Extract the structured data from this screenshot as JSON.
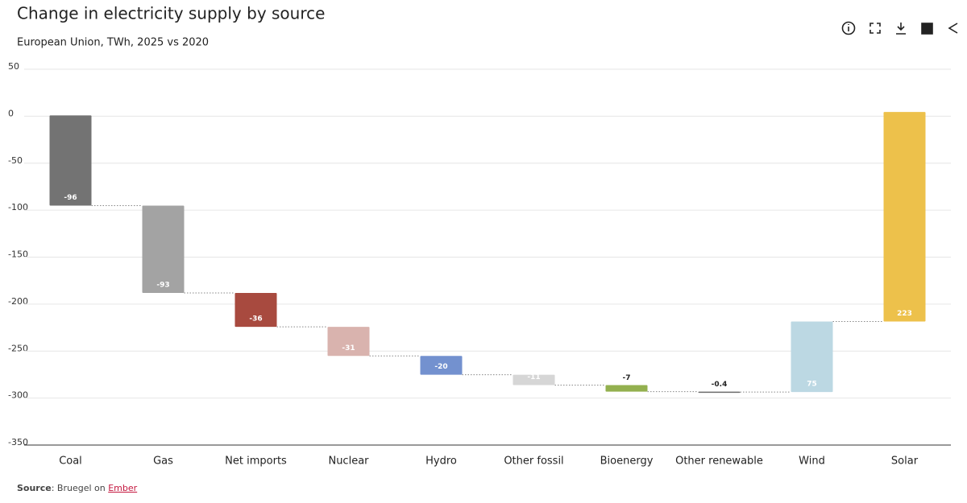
{
  "chart_data": {
    "type": "waterfall",
    "title": "Change in electricity supply by source",
    "subtitle": "European Union, TWh, 2025 vs 2020",
    "categories": [
      "Coal",
      "Gas",
      "Net imports",
      "Nuclear",
      "Hydro",
      "Other fossil",
      "Bioenergy",
      "Other renewable",
      "Wind",
      "Solar"
    ],
    "values": [
      -96,
      -93,
      -36,
      -31,
      -20,
      -11,
      -7,
      -0.4,
      75,
      223
    ],
    "colors": [
      "#737373",
      "#a3a3a3",
      "#a84a3f",
      "#d9b3ae",
      "#7391cf",
      "#d6d6d6",
      "#93b04f",
      "#6b6b6b",
      "#bcd8e3",
      "#edc14b"
    ],
    "ylim": [
      -350,
      50
    ],
    "yticks": [
      50,
      0,
      -50,
      -100,
      -150,
      -200,
      -250,
      -300,
      -350
    ],
    "grid": true
  },
  "source": {
    "label": "Source",
    "text": ": Bruegel on",
    "link": "Ember"
  }
}
